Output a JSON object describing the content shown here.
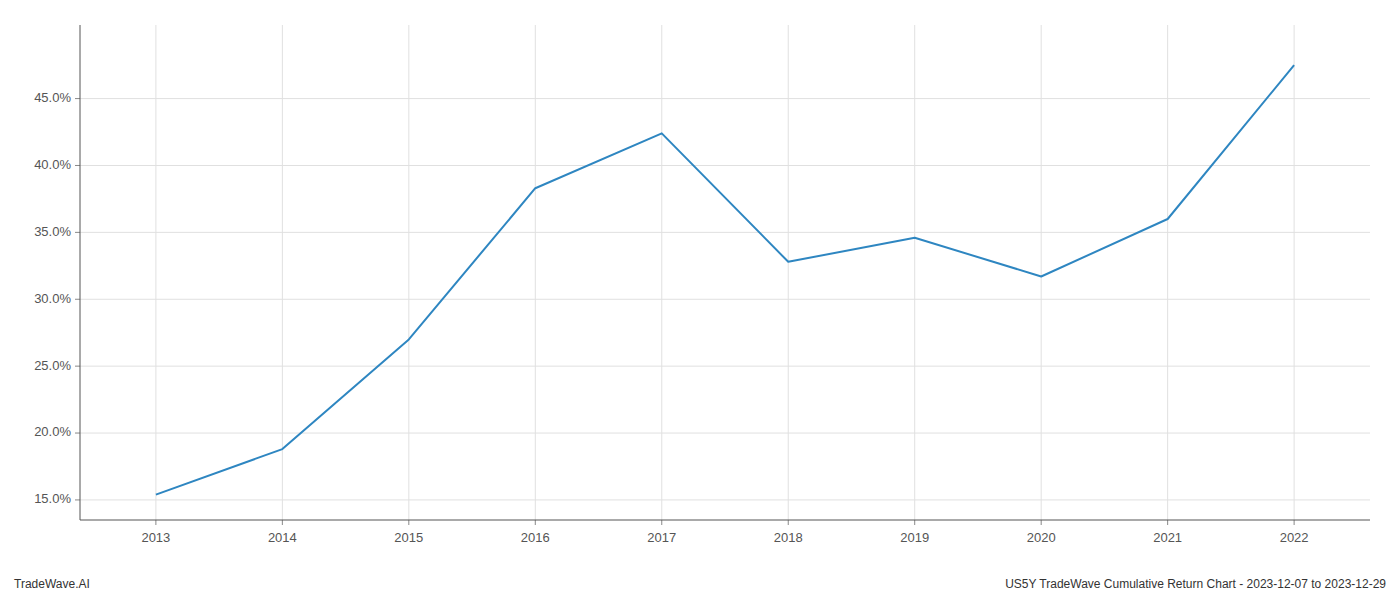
{
  "chart_data": {
    "type": "line",
    "x": [
      2013,
      2014,
      2015,
      2016,
      2017,
      2018,
      2019,
      2020,
      2021,
      2022
    ],
    "values": [
      15.4,
      18.8,
      27.0,
      38.3,
      42.4,
      32.8,
      34.6,
      31.7,
      36.0,
      47.5
    ],
    "color": "#2e86c1",
    "xlim": [
      2012.4,
      2022.6
    ],
    "xticks": [
      2013,
      2014,
      2015,
      2016,
      2017,
      2018,
      2019,
      2020,
      2021,
      2022
    ],
    "ylim": [
      13.5,
      50.5
    ],
    "yticks": [
      {
        "value": 15.0,
        "label": "15.0%"
      },
      {
        "value": 20.0,
        "label": "20.0%"
      },
      {
        "value": 25.0,
        "label": "25.0%"
      },
      {
        "value": 30.0,
        "label": "30.0%"
      },
      {
        "value": 35.0,
        "label": "35.0%"
      },
      {
        "value": 40.0,
        "label": "40.0%"
      },
      {
        "value": 45.0,
        "label": "45.0%"
      }
    ],
    "grid": true,
    "annotations": [
      "TradeWave.AI",
      "US5Y TradeWave Cumulative Return Chart - 2023-12-07 to 2023-12-29"
    ]
  }
}
